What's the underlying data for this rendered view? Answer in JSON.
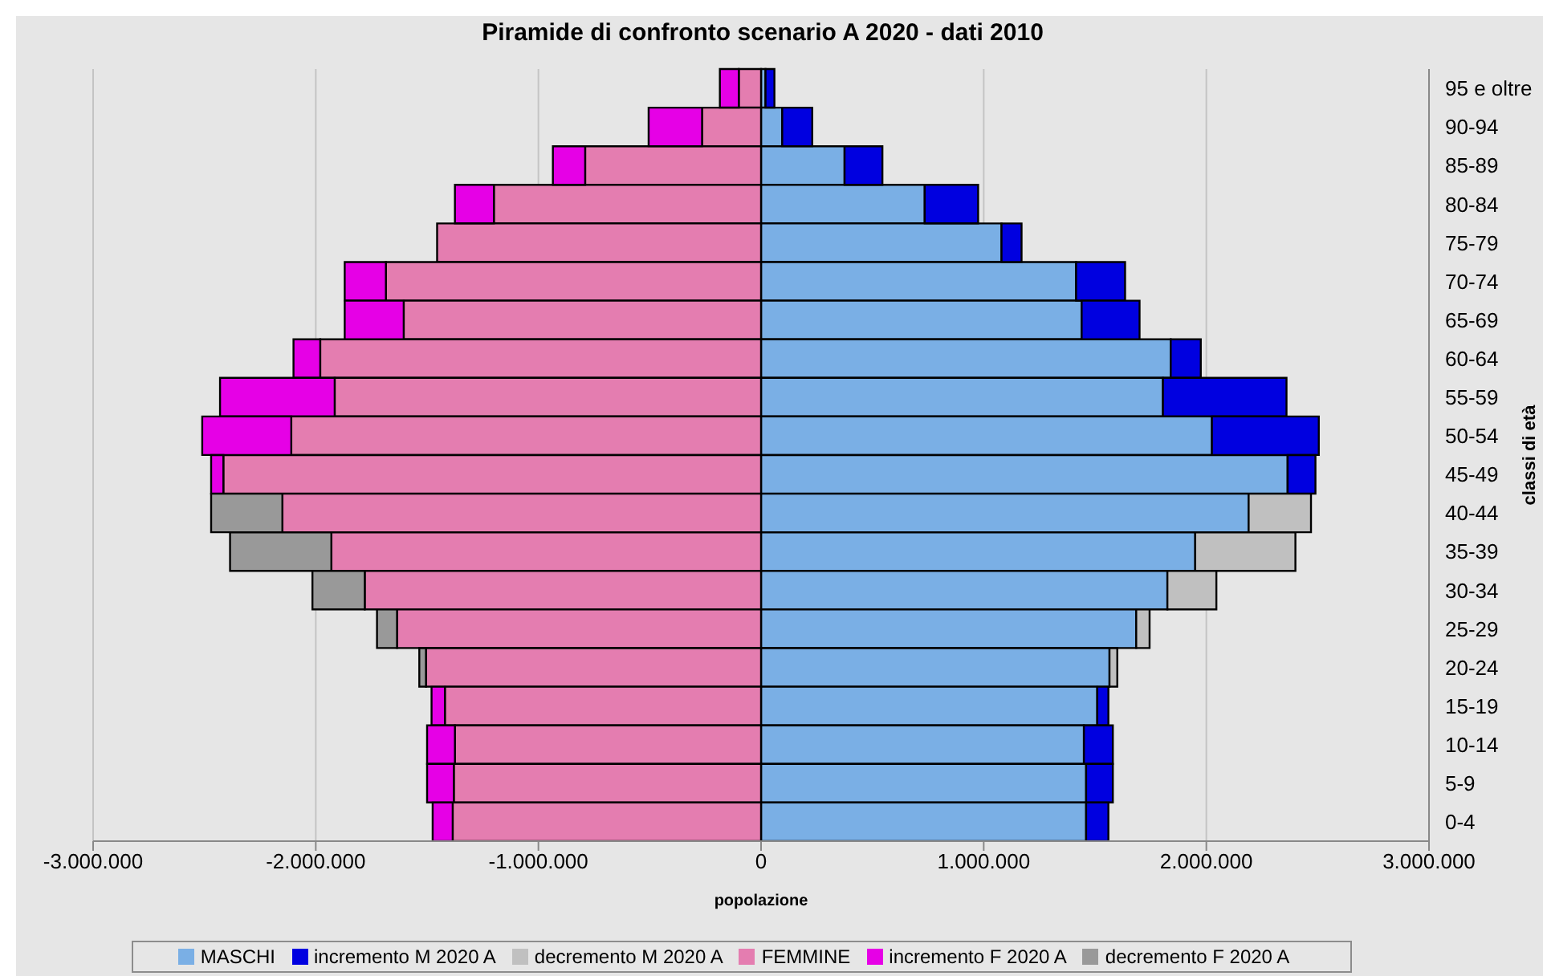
{
  "chart_data": {
    "type": "bar",
    "orientation": "horizontal",
    "stacked": true,
    "title": "Piramide di confronto scenario A 2020 - dati 2010",
    "xlabel": "popolazione",
    "ylabel": "classi di età",
    "categories": [
      "95 e oltre",
      "90-94",
      "85-89",
      "80-84",
      "75-79",
      "70-74",
      "65-69",
      "60-64",
      "55-59",
      "50-54",
      "45-49",
      "40-44",
      "35-39",
      "30-34",
      "25-29",
      "20-24",
      "15-19",
      "10-14",
      "5-9",
      "0-4"
    ],
    "series": [
      {
        "name": "MASCHI",
        "color": "#7aafe5",
        "values": [
          20000,
          95000,
          375000,
          735000,
          1080000,
          1415000,
          1440000,
          1840000,
          1805000,
          2025000,
          2365000,
          2190000,
          1950000,
          1825000,
          1685000,
          1565000,
          1510000,
          1450000,
          1460000,
          1460000
        ]
      },
      {
        "name": "incremento M 2020 A",
        "color": "#0000e0",
        "values": [
          40000,
          135000,
          170000,
          240000,
          90000,
          220000,
          260000,
          135000,
          555000,
          480000,
          125000,
          null,
          null,
          null,
          null,
          null,
          50000,
          130000,
          120000,
          100000
        ]
      },
      {
        "name": "decremento M 2020 A",
        "color": "#c0c0c0",
        "values": [
          null,
          null,
          null,
          null,
          null,
          null,
          null,
          null,
          null,
          null,
          null,
          280000,
          450000,
          220000,
          60000,
          35000,
          null,
          null,
          null,
          null
        ]
      },
      {
        "name": "FEMMINE",
        "color": "#e47db0",
        "values": [
          -100000,
          -265000,
          -790000,
          -1200000,
          -1455000,
          -1685000,
          -1605000,
          -1980000,
          -1915000,
          -2110000,
          -2415000,
          -2150000,
          -1930000,
          -1780000,
          -1635000,
          -1505000,
          -1420000,
          -1375000,
          -1380000,
          -1385000
        ]
      },
      {
        "name": "incremento F 2020 A",
        "color": "#e600e6",
        "values": [
          -85000,
          -240000,
          -145000,
          -175000,
          null,
          -185000,
          -265000,
          -120000,
          -515000,
          -400000,
          -55000,
          null,
          null,
          null,
          null,
          null,
          -60000,
          -125000,
          -120000,
          -90000
        ]
      },
      {
        "name": "decremento F 2020 A",
        "color": "#999999",
        "values": [
          null,
          null,
          null,
          null,
          null,
          null,
          null,
          null,
          null,
          null,
          null,
          -320000,
          -455000,
          -235000,
          -90000,
          -30000,
          null,
          null,
          null,
          null
        ]
      }
    ],
    "xlim": [
      -3000000,
      3000000
    ],
    "xticks": [
      {
        "value": -3000000,
        "label": "-3.000.000"
      },
      {
        "value": -2000000,
        "label": "-2.000.000"
      },
      {
        "value": -1000000,
        "label": "-1.000.000"
      },
      0,
      {
        "value": 1000000,
        "label": "1.000.000"
      },
      {
        "value": 2000000,
        "label": "2.000.000"
      },
      {
        "value": 3000000,
        "label": "3.000.000"
      }
    ],
    "grid": "x",
    "legend": "bottom"
  }
}
